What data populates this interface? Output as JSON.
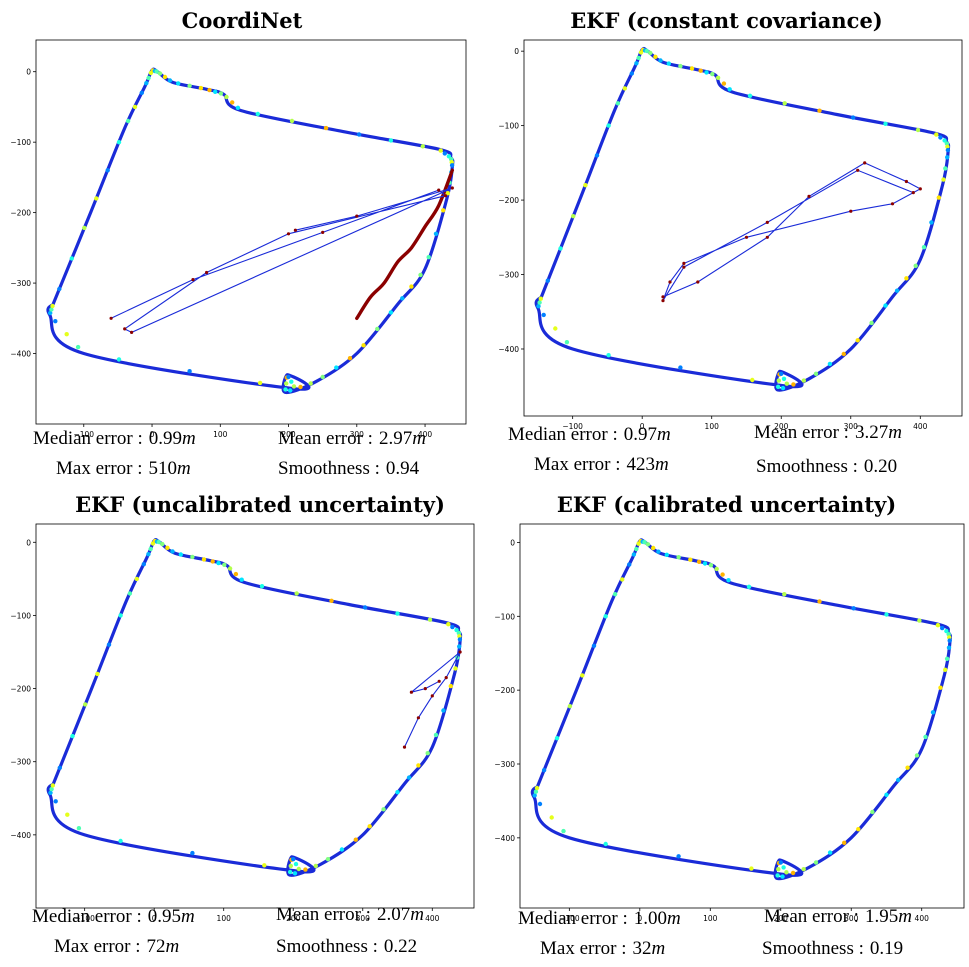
{
  "panels": [
    {
      "id": "coordinet",
      "title": "CoordiNet",
      "metrics": {
        "median_label": "Median error :",
        "median_value": "0.99",
        "median_unit": "m",
        "mean_label": "Mean error :",
        "mean_value": "2.97",
        "mean_unit": "m",
        "max_label": "Max error :",
        "max_value": "510",
        "max_unit": "m",
        "smooth_label": "Smoothness :",
        "smooth_value": "0.94"
      }
    },
    {
      "id": "ekf-constant",
      "title": "EKF (constant covariance)",
      "metrics": {
        "median_label": "Median error :",
        "median_value": "0.97",
        "median_unit": "m",
        "mean_label": "Mean error :",
        "mean_value": "3.27",
        "mean_unit": "m",
        "max_label": "Max error :",
        "max_value": "423",
        "max_unit": "m",
        "smooth_label": "Smoothness :",
        "smooth_value": "0.20"
      }
    },
    {
      "id": "ekf-uncalibrated",
      "title": "EKF (uncalibrated uncertainty)",
      "metrics": {
        "median_label": "Median error :",
        "median_value": "0.95",
        "median_unit": "m",
        "mean_label": "Mean error :",
        "mean_value": "2.07",
        "mean_unit": "m",
        "max_label": "Max error :",
        "max_value": "72",
        "max_unit": "m",
        "smooth_label": "Smoothness :",
        "smooth_value": "0.22"
      }
    },
    {
      "id": "ekf-calibrated",
      "title": "EKF (calibrated uncertainty)",
      "metrics": {
        "median_label": "Median error :",
        "median_value": "1.00",
        "median_unit": "m",
        "mean_label": "Mean error :",
        "mean_value": "1.95",
        "mean_unit": "m",
        "max_label": "Max error :",
        "max_value": "32",
        "max_unit": "m",
        "smooth_label": "Smoothness :",
        "smooth_value": "0.19"
      }
    }
  ],
  "chart_data": [
    {
      "type": "line",
      "title": "CoordiNet",
      "xlabel": "",
      "ylabel": "",
      "xticks": [
        -100,
        0,
        100,
        200,
        300,
        400
      ],
      "yticks": [
        0,
        -100,
        -200,
        -300,
        -400
      ],
      "xlim": [
        -170,
        460
      ],
      "ylim": [
        -500,
        45
      ],
      "grid": false,
      "series": [
        {
          "role": "trajectory-loop",
          "x": [
            -145,
            -90,
            -40,
            -10,
            0,
            8,
            30,
            80,
            105,
            130,
            280,
            420,
            438,
            440,
            432,
            400,
            360,
            300,
            240,
            195,
            198,
            210,
            -100,
            -150,
            -145
          ],
          "y": [
            -330,
            -200,
            -80,
            -20,
            2,
            0,
            -15,
            -25,
            -32,
            -55,
            -85,
            -110,
            -122,
            -135,
            -180,
            -280,
            -330,
            -400,
            -440,
            -455,
            -430,
            -450,
            -400,
            -345,
            -330
          ]
        },
        {
          "role": "ground-truth-cutoff",
          "x": [
            300,
            320,
            340,
            360,
            380,
            400,
            420,
            440
          ],
          "y": [
            -350,
            -320,
            -300,
            -270,
            -250,
            -220,
            -190,
            -140
          ]
        },
        {
          "role": "error-jumps",
          "x": [
            -60,
            60,
            250,
            420,
            430,
            200,
            80,
            -40,
            -30,
            440,
            300,
            210
          ],
          "y": [
            -350,
            -295,
            -228,
            -168,
            -176,
            -230,
            -285,
            -365,
            -370,
            -165,
            -205,
            -225
          ]
        }
      ]
    },
    {
      "type": "line",
      "title": "EKF (constant covariance)",
      "xlabel": "",
      "ylabel": "",
      "xticks": [
        -100,
        0,
        100,
        200,
        300,
        400
      ],
      "yticks": [
        0,
        -100,
        -200,
        -300,
        -400
      ],
      "xlim": [
        -170,
        460
      ],
      "ylim": [
        -490,
        15
      ],
      "grid": false,
      "series": [
        {
          "role": "trajectory-loop",
          "x": [
            -145,
            -90,
            -40,
            -10,
            0,
            8,
            30,
            80,
            105,
            130,
            280,
            420,
            438,
            440,
            432,
            400,
            360,
            300,
            240,
            195,
            198,
            210,
            -100,
            -150,
            -145
          ],
          "y": [
            -330,
            -200,
            -80,
            -20,
            2,
            0,
            -15,
            -25,
            -32,
            -55,
            -85,
            -110,
            -122,
            -135,
            -180,
            -280,
            -330,
            -400,
            -440,
            -455,
            -430,
            -450,
            -400,
            -345,
            -330
          ]
        },
        {
          "role": "error-jumps",
          "x": [
            30,
            80,
            180,
            240,
            320,
            380,
            400,
            360,
            300,
            150,
            60,
            40,
            30,
            60,
            180,
            310,
            390
          ],
          "y": [
            -330,
            -310,
            -250,
            -195,
            -150,
            -175,
            -185,
            -205,
            -215,
            -250,
            -285,
            -310,
            -335,
            -290,
            -230,
            -160,
            -190
          ]
        }
      ]
    },
    {
      "type": "line",
      "title": "EKF (uncalibrated uncertainty)",
      "xlabel": "",
      "ylabel": "",
      "xticks": [
        -100,
        0,
        100,
        200,
        300,
        400
      ],
      "yticks": [
        0,
        -100,
        -200,
        -300,
        -400
      ],
      "xlim": [
        -170,
        460
      ],
      "ylim": [
        -500,
        25
      ],
      "grid": false,
      "series": [
        {
          "role": "trajectory-loop",
          "x": [
            -145,
            -90,
            -40,
            -10,
            0,
            8,
            30,
            80,
            105,
            130,
            280,
            420,
            438,
            440,
            432,
            400,
            360,
            300,
            240,
            195,
            198,
            210,
            -100,
            -150,
            -145
          ],
          "y": [
            -330,
            -200,
            -80,
            -20,
            2,
            0,
            -15,
            -25,
            -32,
            -55,
            -85,
            -110,
            -122,
            -135,
            -180,
            -280,
            -330,
            -400,
            -440,
            -455,
            -430,
            -450,
            -400,
            -345,
            -330
          ]
        },
        {
          "role": "error-jumps",
          "x": [
            360,
            380,
            400,
            420,
            440,
            370,
            390,
            410
          ],
          "y": [
            -280,
            -240,
            -210,
            -185,
            -150,
            -205,
            -200,
            -190
          ]
        }
      ]
    },
    {
      "type": "line",
      "title": "EKF (calibrated uncertainty)",
      "xlabel": "",
      "ylabel": "",
      "xticks": [
        -100,
        0,
        100,
        200,
        300,
        400
      ],
      "yticks": [
        0,
        -100,
        -200,
        -300,
        -400
      ],
      "xlim": [
        -170,
        460
      ],
      "ylim": [
        -495,
        25
      ],
      "grid": false,
      "series": [
        {
          "role": "trajectory-loop",
          "x": [
            -145,
            -90,
            -40,
            -10,
            0,
            8,
            30,
            80,
            105,
            130,
            280,
            420,
            438,
            440,
            432,
            400,
            360,
            300,
            240,
            195,
            198,
            210,
            -100,
            -150,
            -145
          ],
          "y": [
            -330,
            -200,
            -80,
            -20,
            2,
            0,
            -15,
            -25,
            -32,
            -55,
            -85,
            -110,
            -122,
            -135,
            -180,
            -280,
            -330,
            -400,
            -440,
            -455,
            -430,
            -450,
            -400,
            -345,
            -330
          ]
        }
      ]
    }
  ]
}
